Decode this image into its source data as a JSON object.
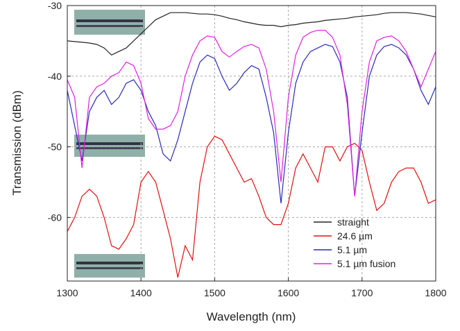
{
  "chart_data": {
    "type": "line",
    "x_label": "Wavelength (nm)",
    "y_label": "Transmission (dBm)",
    "x": [
      1300,
      1310,
      1320,
      1330,
      1340,
      1350,
      1360,
      1370,
      1380,
      1390,
      1400,
      1410,
      1420,
      1430,
      1440,
      1450,
      1460,
      1470,
      1480,
      1490,
      1500,
      1510,
      1520,
      1530,
      1540,
      1550,
      1560,
      1570,
      1580,
      1590,
      1600,
      1610,
      1620,
      1630,
      1640,
      1650,
      1660,
      1670,
      1680,
      1690,
      1700,
      1710,
      1720,
      1730,
      1740,
      1750,
      1760,
      1770,
      1780,
      1790,
      1800
    ],
    "series": [
      {
        "name": "straight",
        "color": "#222222",
        "values": [
          -35,
          -35.1,
          -35.2,
          -35.3,
          -35.5,
          -36,
          -37,
          -36.5,
          -36,
          -35,
          -34,
          -33,
          -32,
          -31.5,
          -31,
          -31,
          -31,
          -31.1,
          -31.2,
          -31.2,
          -31.3,
          -31.5,
          -31.8,
          -32,
          -32.3,
          -32.5,
          -32.7,
          -32.8,
          -32.8,
          -33,
          -32.8,
          -32.7,
          -32.5,
          -32.4,
          -32.3,
          -32.1,
          -32,
          -31.9,
          -31.8,
          -31.6,
          -31.5,
          -31.4,
          -31.3,
          -31.1,
          -31,
          -31,
          -31,
          -31.1,
          -31.2,
          -31.4,
          -31.6
        ]
      },
      {
        "name": "24.6 µm",
        "color": "#e01010",
        "values": [
          -62,
          -60,
          -57,
          -56,
          -57,
          -60,
          -64,
          -64.5,
          -63,
          -61,
          -55,
          -53.5,
          -55,
          -59,
          -63,
          -68.5,
          -64,
          -66,
          -55,
          -50,
          -48.5,
          -49,
          -51,
          -53,
          -55,
          -54.5,
          -57,
          -60,
          -61,
          -61,
          -58,
          -53,
          -51,
          -53,
          -55,
          -50,
          -50,
          -52,
          -50,
          -49.5,
          -50.5,
          -55,
          -59,
          -58,
          -55,
          -53.5,
          -53,
          -53,
          -55,
          -58,
          -57.5
        ]
      },
      {
        "name": "5.1 µm",
        "color": "#2a2ab8",
        "values": [
          -42,
          -47,
          -52,
          -45,
          -43,
          -42,
          -44,
          -43,
          -41,
          -40.5,
          -42,
          -45,
          -47,
          -51,
          -52,
          -49,
          -45,
          -41,
          -38,
          -37,
          -37.5,
          -40,
          -42,
          -41,
          -39.5,
          -38.5,
          -39,
          -43,
          -48,
          -58,
          -48,
          -41,
          -38,
          -36.5,
          -36,
          -35.5,
          -35.8,
          -38,
          -43,
          -57,
          -48,
          -40,
          -37,
          -35.8,
          -35.5,
          -36,
          -37,
          -39,
          -42,
          -44,
          -41.5
        ]
      },
      {
        "name": "5.1 µm fusion",
        "color": "#e020e0",
        "values": [
          -40.5,
          -43,
          -53,
          -43,
          -41.5,
          -41,
          -40,
          -39.5,
          -38,
          -38.5,
          -41,
          -46,
          -47.5,
          -47.5,
          -47,
          -45,
          -40,
          -37,
          -35,
          -34.3,
          -34.5,
          -36.5,
          -37.3,
          -36.5,
          -35.8,
          -35.5,
          -36,
          -39,
          -45,
          -55,
          -43,
          -37,
          -34.5,
          -33.8,
          -33.5,
          -33.5,
          -34.5,
          -37,
          -44,
          -57,
          -45,
          -38,
          -35,
          -34.5,
          -34.3,
          -35,
          -36.5,
          -39,
          -41.5,
          -39,
          -36.5
        ]
      }
    ],
    "xlim": [
      1300,
      1800
    ],
    "ylim": [
      -69,
      -30
    ],
    "xticks": [
      1300,
      1400,
      1500,
      1600,
      1700,
      1800
    ],
    "yticks": [
      -30,
      -40,
      -50,
      -60
    ],
    "grid": true,
    "legend": "lower right"
  }
}
